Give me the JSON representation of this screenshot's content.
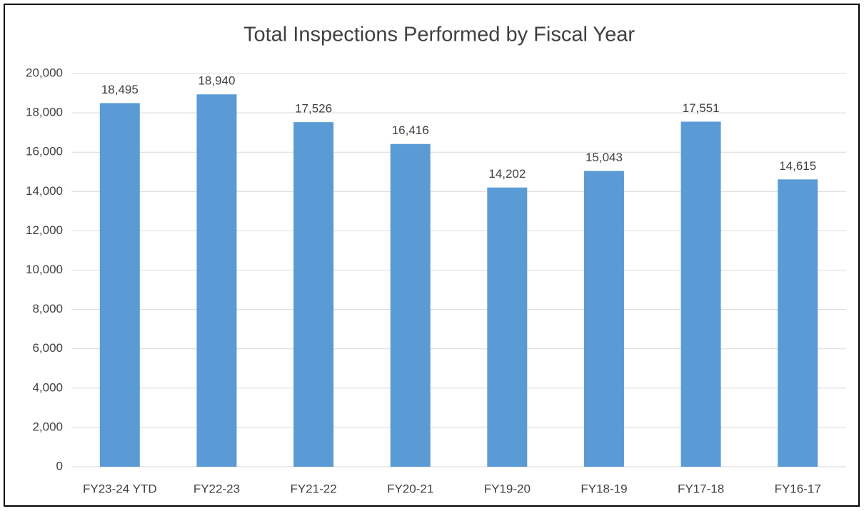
{
  "chart_data": {
    "type": "bar",
    "title": "Total Inspections Performed by Fiscal Year",
    "categories": [
      "FY23-24 YTD",
      "FY22-23",
      "FY21-22",
      "FY20-21",
      "FY19-20",
      "FY18-19",
      "FY17-18",
      "FY16-17"
    ],
    "values": [
      18495,
      18940,
      17526,
      16416,
      14202,
      15043,
      17551,
      14615
    ],
    "value_labels": [
      "18,495",
      "18,940",
      "17,526",
      "16,416",
      "14,202",
      "15,043",
      "17,551",
      "14,615"
    ],
    "color": "#5b9bd5",
    "ylim": [
      0,
      20000
    ],
    "yticks": [
      0,
      {
        "value": 2000,
        "label": "2,000"
      },
      {
        "value": 4000,
        "label": "4,000"
      },
      {
        "value": 6000,
        "label": "6,000"
      },
      {
        "value": 8000,
        "label": "8,000"
      },
      {
        "value": 10000,
        "label": "10,000"
      },
      {
        "value": 12000,
        "label": "12,000"
      },
      {
        "value": 14000,
        "label": "14,000"
      },
      {
        "value": 16000,
        "label": "16,000"
      },
      {
        "value": 18000,
        "label": "18,000"
      },
      {
        "value": 20000,
        "label": "20,000"
      }
    ],
    "grid": true
  }
}
